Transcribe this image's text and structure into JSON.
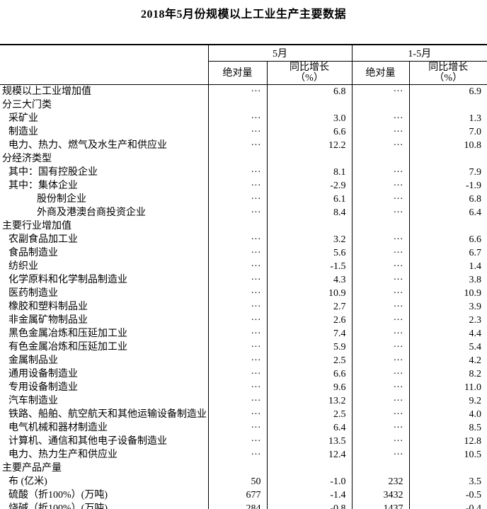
{
  "title": "2018年5月份规模以上工业生产主要数据",
  "table": {
    "col_groups": [
      {
        "label": "5月"
      },
      {
        "label": "1-5月"
      }
    ],
    "sub_headers": [
      "绝对量",
      "同比增长\n（%）",
      "绝对量",
      "同比增长\n（%）"
    ],
    "ellipsis_symbol": "···",
    "rows": [
      {
        "label": "规模以上工业增加值",
        "indent": 0,
        "values": [
          "···",
          "6.8",
          "···",
          "6.9"
        ]
      },
      {
        "label": "分三大门类",
        "indent": 0,
        "values": [
          "",
          "",
          "",
          ""
        ]
      },
      {
        "label": "采矿业",
        "indent": 1,
        "values": [
          "···",
          "3.0",
          "···",
          "1.3"
        ]
      },
      {
        "label": "制造业",
        "indent": 1,
        "values": [
          "···",
          "6.6",
          "···",
          "7.0"
        ]
      },
      {
        "label": "电力、热力、燃气及水生产和供应业",
        "indent": 1,
        "values": [
          "···",
          "12.2",
          "···",
          "10.8"
        ]
      },
      {
        "label": "分经济类型",
        "indent": 0,
        "values": [
          "",
          "",
          "",
          ""
        ]
      },
      {
        "label": "其中：国有控股企业",
        "indent": 1,
        "values": [
          "···",
          "8.1",
          "···",
          "7.9"
        ]
      },
      {
        "label": "其中：集体企业",
        "indent": 1,
        "values": [
          "···",
          "-2.9",
          "···",
          "-1.9"
        ]
      },
      {
        "label": "股份制企业",
        "indent": 2,
        "values": [
          "···",
          "6.1",
          "···",
          "6.8"
        ]
      },
      {
        "label": "外商及港澳台商投资企业",
        "indent": 2,
        "values": [
          "···",
          "8.4",
          "···",
          "6.4"
        ]
      },
      {
        "label": "主要行业增加值",
        "indent": 0,
        "values": [
          "",
          "",
          "",
          ""
        ]
      },
      {
        "label": "农副食品加工业",
        "indent": 1,
        "values": [
          "···",
          "3.2",
          "···",
          "6.6"
        ]
      },
      {
        "label": "食品制造业",
        "indent": 1,
        "values": [
          "···",
          "5.6",
          "···",
          "6.7"
        ]
      },
      {
        "label": "纺织业",
        "indent": 1,
        "values": [
          "···",
          "-1.5",
          "···",
          "1.4"
        ]
      },
      {
        "label": "化学原料和化学制品制造业",
        "indent": 1,
        "values": [
          "···",
          "4.3",
          "···",
          "3.8"
        ]
      },
      {
        "label": "医药制造业",
        "indent": 1,
        "values": [
          "···",
          "10.9",
          "···",
          "10.9"
        ]
      },
      {
        "label": "橡胶和塑料制品业",
        "indent": 1,
        "values": [
          "···",
          "2.7",
          "···",
          "3.9"
        ]
      },
      {
        "label": "非金属矿物制品业",
        "indent": 1,
        "values": [
          "···",
          "2.6",
          "···",
          "2.3"
        ]
      },
      {
        "label": "黑色金属冶炼和压延加工业",
        "indent": 1,
        "values": [
          "···",
          "7.4",
          "···",
          "4.4"
        ]
      },
      {
        "label": "有色金属冶炼和压延加工业",
        "indent": 1,
        "values": [
          "···",
          "5.9",
          "···",
          "5.4"
        ]
      },
      {
        "label": "金属制品业",
        "indent": 1,
        "values": [
          "···",
          "2.5",
          "···",
          "4.2"
        ]
      },
      {
        "label": "通用设备制造业",
        "indent": 1,
        "values": [
          "···",
          "6.6",
          "···",
          "8.2"
        ]
      },
      {
        "label": "专用设备制造业",
        "indent": 1,
        "values": [
          "···",
          "9.6",
          "···",
          "11.0"
        ]
      },
      {
        "label": "汽车制造业",
        "indent": 1,
        "values": [
          "···",
          "13.2",
          "···",
          "9.2"
        ]
      },
      {
        "label": "铁路、船舶、航空航天和其他运输设备制造业",
        "indent": 1,
        "values": [
          "···",
          "2.5",
          "···",
          "4.0"
        ]
      },
      {
        "label": "电气机械和器材制造业",
        "indent": 1,
        "values": [
          "···",
          "6.4",
          "···",
          "8.5"
        ]
      },
      {
        "label": "计算机、通信和其他电子设备制造业",
        "indent": 1,
        "values": [
          "···",
          "13.5",
          "···",
          "12.8"
        ]
      },
      {
        "label": "电力、热力生产和供应业",
        "indent": 1,
        "values": [
          "···",
          "12.4",
          "···",
          "10.5"
        ]
      },
      {
        "label": "主要产品产量",
        "indent": 0,
        "values": [
          "",
          "",
          "",
          ""
        ]
      },
      {
        "label": "布 (亿米)",
        "indent": 1,
        "values": [
          "50",
          "-1.0",
          "232",
          "3.5"
        ]
      },
      {
        "label": "硫酸（折100%）(万吨)",
        "indent": 1,
        "values": [
          "677",
          "-1.4",
          "3432",
          "-0.5"
        ]
      },
      {
        "label": "烧碱（折100%）(万吨)",
        "indent": 1,
        "values": [
          "284",
          "-0.8",
          "1437",
          "-0.4"
        ]
      }
    ]
  }
}
